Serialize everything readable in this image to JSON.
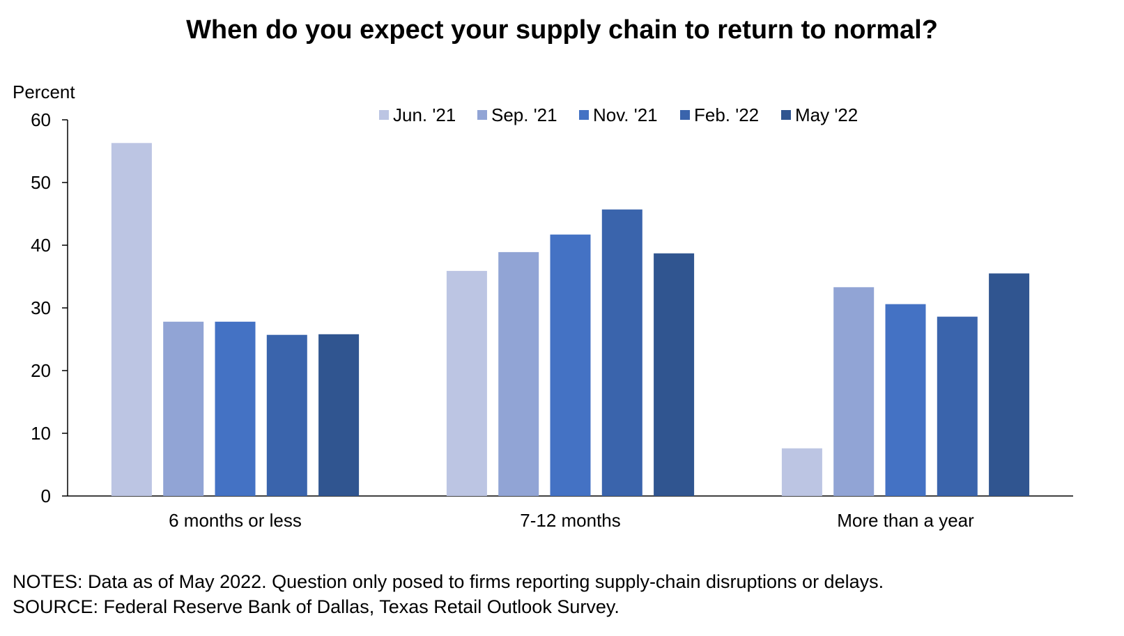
{
  "chart_data": {
    "type": "bar",
    "title": "When do you expect your supply chain to return to normal?",
    "ylabel": "Percent",
    "xlabel": "",
    "ylim": [
      0,
      60
    ],
    "yticks": [
      0,
      10,
      20,
      30,
      40,
      50,
      60
    ],
    "grid": false,
    "legend_position": "top",
    "categories": [
      "6 months or less",
      "7-12 months",
      "More than a year"
    ],
    "series": [
      {
        "name": "Jun. '21",
        "color": "#bcc5e3",
        "values": [
          56.3,
          35.9,
          7.6
        ]
      },
      {
        "name": "Sep. '21",
        "color": "#91a4d5",
        "values": [
          27.8,
          38.9,
          33.3
        ]
      },
      {
        "name": "Nov. '21",
        "color": "#4472c4",
        "values": [
          27.8,
          41.7,
          30.6
        ]
      },
      {
        "name": "Feb. '22",
        "color": "#3a64ac",
        "values": [
          25.7,
          45.7,
          28.6
        ]
      },
      {
        "name": "May '22",
        "color": "#305590",
        "values": [
          25.8,
          38.7,
          35.5
        ]
      }
    ]
  },
  "notes": "NOTES: Data as of May 2022. Question only posed to firms reporting supply-chain disruptions or delays.",
  "source": "SOURCE: Federal Reserve Bank of Dallas, Texas Retail Outlook Survey."
}
